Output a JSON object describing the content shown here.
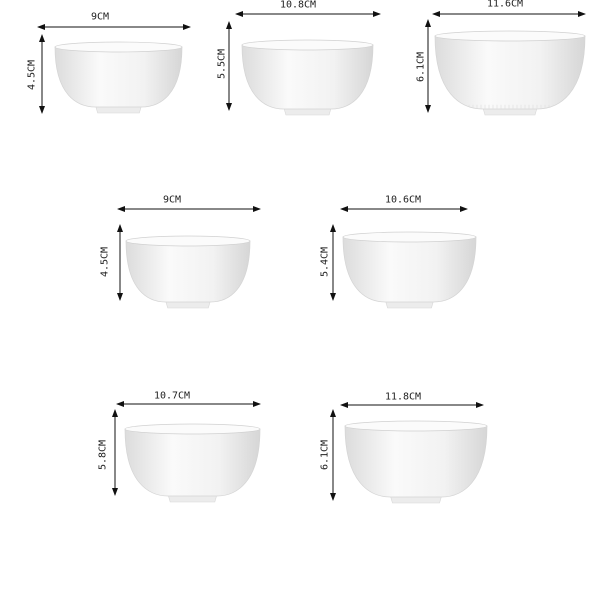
{
  "colors": {
    "background": "#ffffff",
    "bowl": "#f4f4f4",
    "arrow": "#111111"
  },
  "bowls": [
    {
      "width_label": "9CM",
      "height_label": "4.5CM",
      "pattern": "ribbed"
    },
    {
      "width_label": "10.8CM",
      "height_label": "5.5CM",
      "pattern": "ribbed"
    },
    {
      "width_label": "11.6CM",
      "height_label": "6.1CM",
      "pattern": "ribbed"
    },
    {
      "width_label": "9CM",
      "height_label": "4.5CM",
      "pattern": "dotted"
    },
    {
      "width_label": "10.6CM",
      "height_label": "5.4CM",
      "pattern": "dotted"
    },
    {
      "width_label": "10.7CM",
      "height_label": "5.8CM",
      "pattern": "dotted"
    },
    {
      "width_label": "11.8CM",
      "height_label": "6.1CM",
      "pattern": "dotted"
    }
  ]
}
